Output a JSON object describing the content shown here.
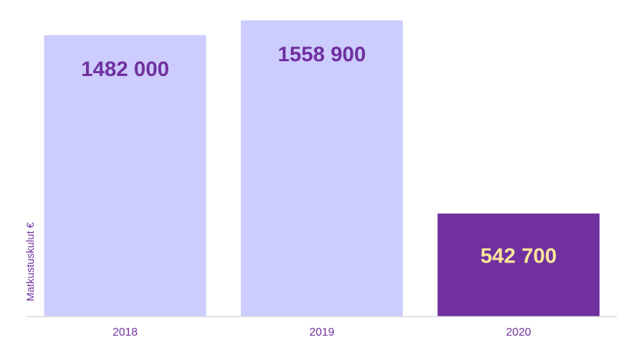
{
  "chart_data": {
    "type": "bar",
    "categories": [
      "2018",
      "2019",
      "2020"
    ],
    "values": [
      1482000,
      1558900,
      542700
    ],
    "data_labels": [
      "1482 000",
      "1558 900",
      "542 700"
    ],
    "title": "",
    "xlabel": "",
    "ylabel": "Matkustuskulut €",
    "ylim": [
      0,
      1600000
    ],
    "grid": false,
    "legend": "none",
    "highlight_index": 2,
    "colors": {
      "bar": "#ccccff",
      "bar_highlight": "#7030a0",
      "label_on_light": "#7030a0",
      "label_on_dark": "#ffe699",
      "axis_text": "#7030a0",
      "axis_line": "#d9d9d9"
    }
  }
}
